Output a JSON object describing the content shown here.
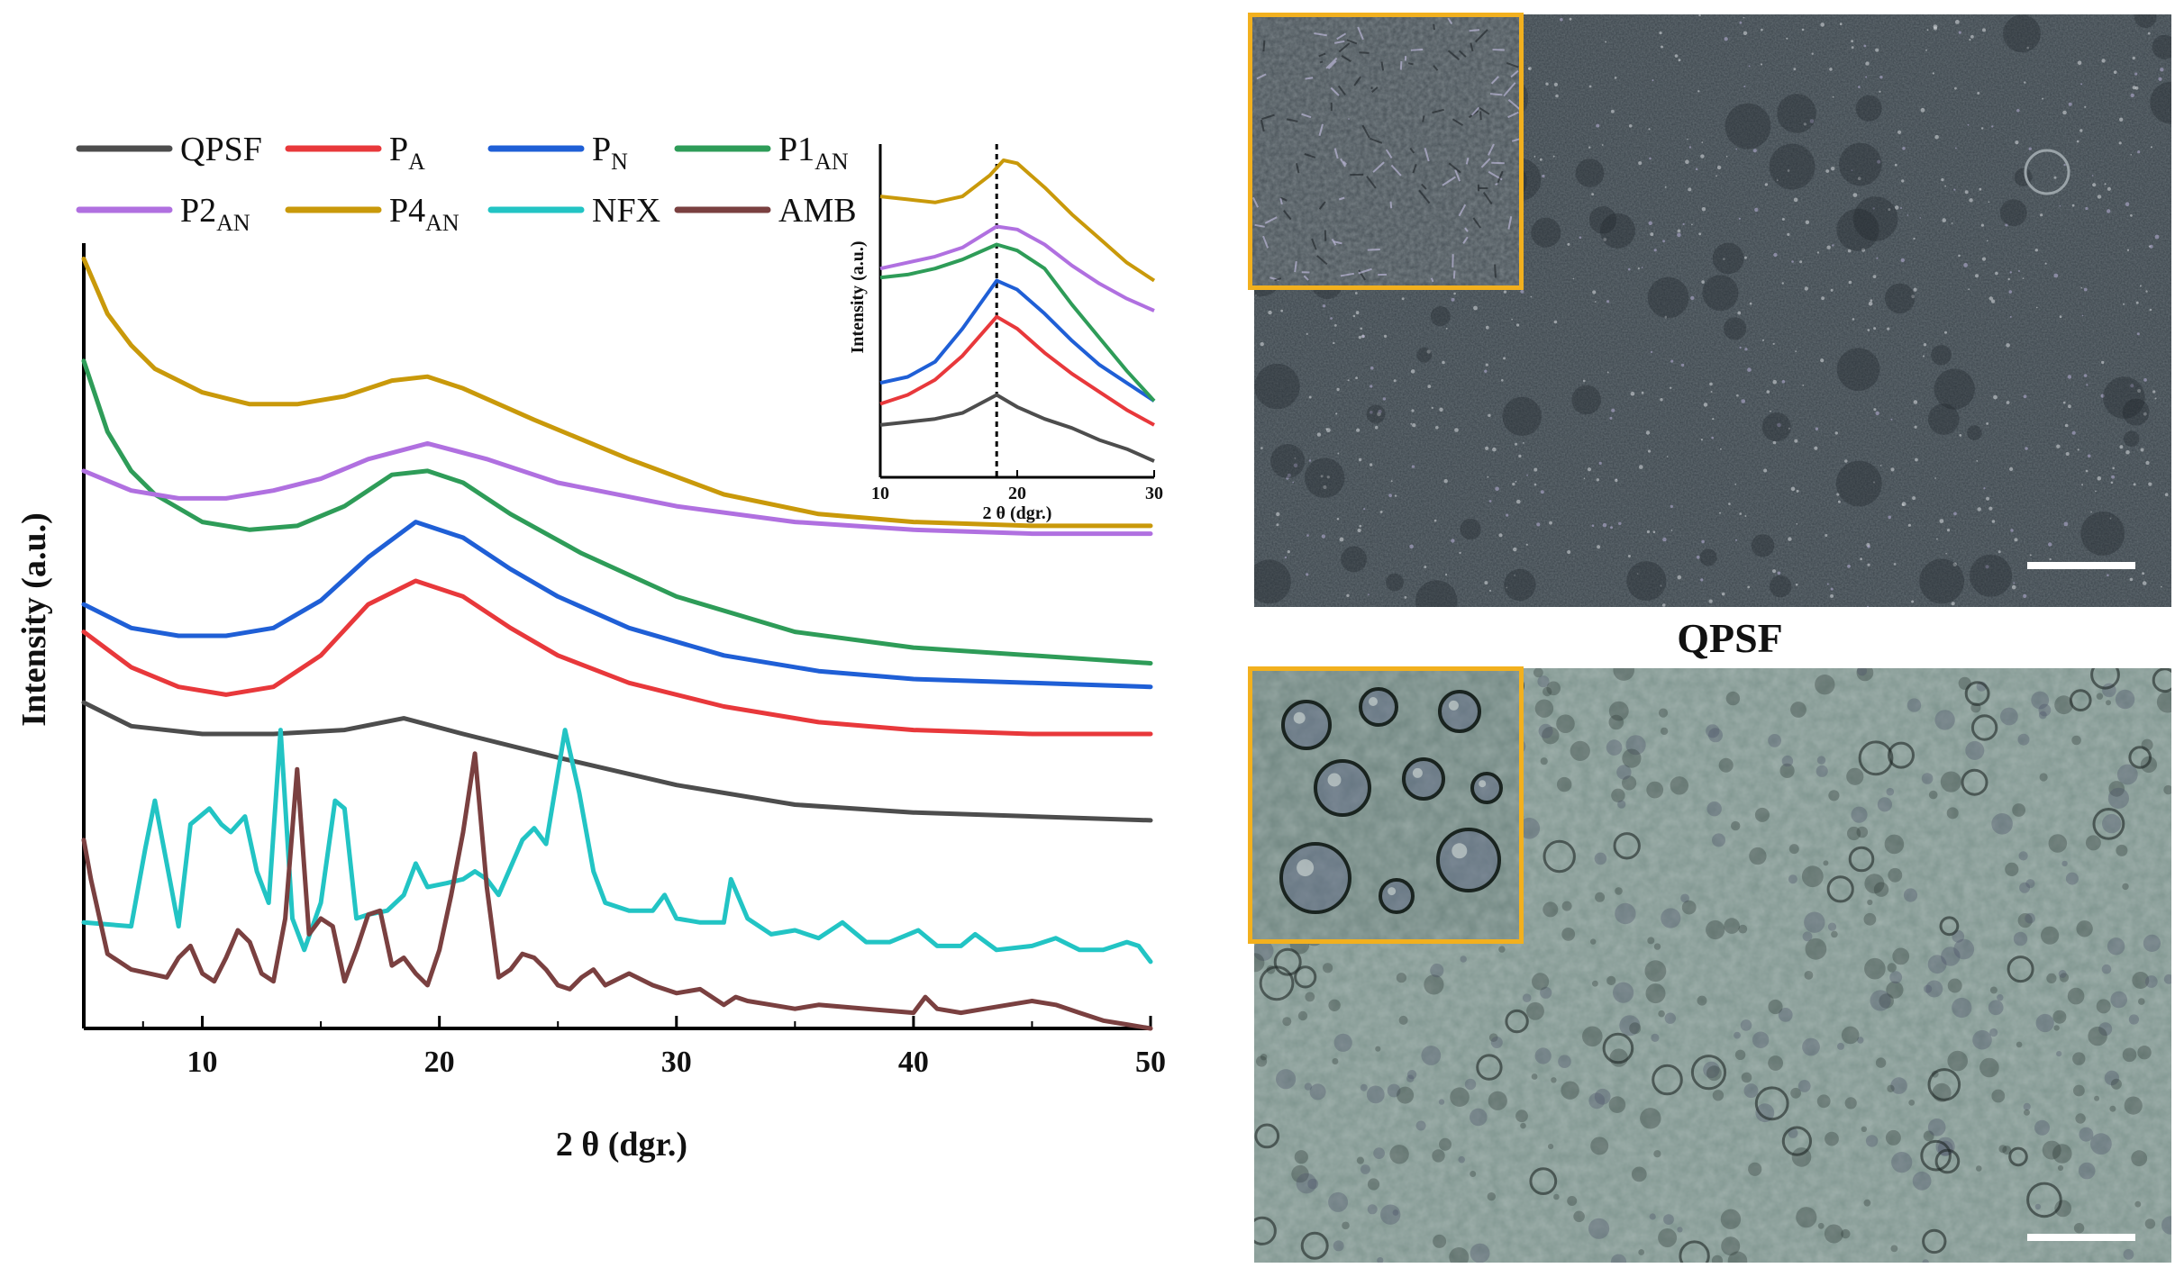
{
  "chart_data": [
    {
      "type": "line",
      "title": "",
      "xlabel": "2 θ (dgr.)",
      "ylabel": "Intensity (a.u.)",
      "xlim": [
        5,
        50
      ],
      "ylim": [
        0,
        100
      ],
      "xticks": [
        10,
        20,
        30,
        40,
        50
      ],
      "y_tick_labels": false,
      "legend": {
        "placement": "top",
        "columns": 4
      },
      "series": [
        {
          "name": "QPSF",
          "sub": "",
          "color": "#4d4d4d",
          "x": [
            5,
            7,
            10,
            13,
            16,
            18.5,
            21,
            25,
            30,
            35,
            40,
            45,
            50
          ],
          "y": [
            41.5,
            38.5,
            37.5,
            37.5,
            38,
            39.5,
            37.5,
            34.5,
            31,
            28.5,
            27.5,
            27,
            26.5
          ]
        },
        {
          "name": "P",
          "sub": "A",
          "color": "#e8383b",
          "x": [
            5,
            7,
            9,
            11,
            13,
            15,
            17,
            19,
            21,
            23,
            25,
            28,
            32,
            36,
            40,
            45,
            50
          ],
          "y": [
            50.5,
            46,
            43.5,
            42.5,
            43.5,
            47.5,
            54,
            57,
            55,
            51,
            47.5,
            44,
            41,
            39,
            38,
            37.5,
            37.5
          ]
        },
        {
          "name": "P",
          "sub": "N",
          "color": "#1f5fd6",
          "x": [
            5,
            7,
            9,
            11,
            13,
            15,
            17,
            19,
            21,
            23,
            25,
            28,
            32,
            36,
            40,
            45,
            50
          ],
          "y": [
            54,
            51,
            50,
            50,
            51,
            54.5,
            60,
            64.5,
            62.5,
            58.5,
            55,
            51,
            47.5,
            45.5,
            44.5,
            44,
            43.5
          ]
        },
        {
          "name": "P1",
          "sub": "AN",
          "color": "#2e9c58",
          "x": [
            5,
            6,
            7,
            8,
            10,
            12,
            14,
            16,
            18,
            19.5,
            21,
            23,
            26,
            30,
            35,
            40,
            45,
            50
          ],
          "y": [
            85,
            76,
            71,
            68,
            64.5,
            63.5,
            64,
            66.5,
            70.5,
            71,
            69.5,
            65.5,
            60.5,
            55,
            50.5,
            48.5,
            47.5,
            46.5
          ]
        },
        {
          "name": "P2",
          "sub": "AN",
          "color": "#b070e0",
          "x": [
            5,
            7,
            9,
            11,
            13,
            15,
            17,
            19.5,
            22,
            25,
            30,
            35,
            40,
            45,
            50
          ],
          "y": [
            71,
            68.5,
            67.5,
            67.5,
            68.5,
            70,
            72.5,
            74.5,
            72.5,
            69.5,
            66.5,
            64.5,
            63.5,
            63,
            63
          ]
        },
        {
          "name": "P4",
          "sub": "AN",
          "color": "#c9990a",
          "x": [
            5,
            6,
            7,
            8,
            10,
            12,
            14,
            16,
            18,
            19.5,
            21,
            24,
            28,
            32,
            36,
            40,
            45,
            50
          ],
          "y": [
            98,
            91,
            87,
            84,
            81,
            79.5,
            79.5,
            80.5,
            82.5,
            83,
            81.5,
            77.5,
            72.5,
            68,
            65.5,
            64.5,
            64,
            64
          ]
        },
        {
          "name": "NFX",
          "sub": "",
          "color": "#22c4c4",
          "x": [
            5,
            7,
            7.6,
            8,
            8.5,
            9,
            9.5,
            10.3,
            10.8,
            11.2,
            11.8,
            12.3,
            12.8,
            13.3,
            13.8,
            14.3,
            15,
            15.6,
            16,
            16.5,
            17,
            17.8,
            18.5,
            19,
            19.5,
            20.3,
            21,
            21.5,
            22,
            22.5,
            23.5,
            24,
            24.5,
            25.3,
            25.9,
            26.5,
            27,
            28,
            29,
            29.5,
            30,
            31,
            32,
            32.3,
            33,
            34,
            35,
            36,
            37,
            38,
            39,
            40.2,
            41,
            42,
            42.6,
            43.5,
            45,
            46,
            47,
            48,
            49,
            49.5,
            50
          ],
          "y": [
            13.5,
            13,
            23,
            29,
            21,
            13,
            26,
            28,
            26,
            25,
            27,
            20,
            16,
            38,
            14,
            10,
            16,
            29,
            28,
            14,
            14.5,
            15,
            17,
            21,
            18,
            18.5,
            19,
            20,
            19,
            17,
            24,
            25.5,
            23.5,
            38,
            30,
            20,
            16,
            15,
            15,
            17,
            14,
            13.5,
            13.5,
            19,
            14,
            12,
            12.5,
            11.5,
            13.5,
            11,
            11,
            12.5,
            10.5,
            10.5,
            12,
            10,
            10.5,
            11.5,
            10,
            10,
            11,
            10.5,
            8.5
          ]
        },
        {
          "name": "AMB",
          "sub": "",
          "color": "#7a4040",
          "x": [
            5,
            5.3,
            6,
            7,
            8.5,
            9,
            9.5,
            10,
            10.5,
            11,
            11.5,
            12,
            12.5,
            13,
            13.5,
            14,
            14.5,
            15,
            15.5,
            16,
            16.5,
            17,
            17.5,
            18,
            18.5,
            19,
            19.5,
            20,
            20.5,
            21,
            21.5,
            22,
            22.5,
            23,
            23.5,
            24,
            24.5,
            25,
            25.5,
            26,
            26.5,
            27,
            28,
            29,
            30,
            31,
            32,
            32.5,
            33,
            34,
            35,
            36,
            38,
            40,
            40.5,
            41,
            42,
            43,
            44,
            45,
            46,
            47,
            48,
            49,
            50
          ],
          "y": [
            24,
            19,
            9.5,
            7.5,
            6.5,
            9,
            10.5,
            7,
            6,
            9,
            12.5,
            11,
            7,
            6,
            14,
            33,
            12,
            14,
            13,
            6,
            10,
            14.5,
            15,
            8,
            9,
            7,
            5.5,
            10,
            17,
            25,
            35,
            18,
            6.5,
            7.5,
            9.5,
            9,
            7.5,
            5.5,
            5,
            6.5,
            7.5,
            5.5,
            7,
            5.5,
            4.5,
            5,
            3,
            4,
            3.5,
            3,
            2.5,
            3,
            2.5,
            2,
            4,
            2.5,
            2,
            2.5,
            3,
            3.5,
            3,
            2,
            1,
            0.5,
            0
          ]
        }
      ]
    },
    {
      "type": "line",
      "title": "",
      "xlabel": "2 θ (dgr.)",
      "ylabel": "Intensity (a.u.)",
      "xlim": [
        10,
        30
      ],
      "ylim": [
        0,
        100
      ],
      "xticks": [
        10,
        20,
        30
      ],
      "reference_line_x": 18.5,
      "series": [
        {
          "name": "QPSF",
          "color": "#4d4d4d",
          "x": [
            10,
            12,
            14,
            16,
            18.5,
            20,
            22,
            24,
            26,
            28,
            30
          ],
          "y": [
            12,
            13,
            14,
            16,
            22,
            18,
            14,
            11,
            7,
            4,
            0
          ]
        },
        {
          "name": "PA",
          "color": "#e8383b",
          "x": [
            10,
            12,
            14,
            16,
            18.5,
            20,
            22,
            24,
            26,
            28,
            30
          ],
          "y": [
            19,
            22,
            27,
            35,
            48,
            44,
            36,
            29,
            23,
            17,
            12
          ]
        },
        {
          "name": "PN",
          "color": "#1f5fd6",
          "x": [
            10,
            12,
            14,
            16,
            18.5,
            20,
            22,
            24,
            26,
            28,
            30
          ],
          "y": [
            26,
            28,
            33,
            44,
            60,
            57,
            49,
            40,
            32,
            26,
            20
          ]
        },
        {
          "name": "P1AN",
          "color": "#2e9c58",
          "x": [
            10,
            12,
            14,
            16,
            18.5,
            20,
            22,
            24,
            26,
            28,
            30
          ],
          "y": [
            61,
            62,
            64,
            67,
            72,
            70,
            64,
            52,
            41,
            30,
            20
          ]
        },
        {
          "name": "P2AN",
          "color": "#b070e0",
          "x": [
            10,
            12,
            14,
            16,
            18.5,
            20,
            22,
            24,
            26,
            28,
            30
          ],
          "y": [
            64,
            66,
            68,
            71,
            78,
            77,
            72,
            65,
            59,
            54,
            50
          ]
        },
        {
          "name": "P4AN",
          "color": "#c9990a",
          "x": [
            10,
            12,
            14,
            16,
            18,
            19,
            20,
            22,
            24,
            26,
            28,
            30
          ],
          "y": [
            88,
            87,
            86,
            88,
            95,
            100,
            99,
            91,
            82,
            74,
            66,
            60
          ]
        }
      ]
    }
  ],
  "micrographs": {
    "caption": "QPSF",
    "frame_color": "#f2b01e",
    "top_panel_color": "#3b444b",
    "bottom_panel_color": "#7f958f"
  }
}
